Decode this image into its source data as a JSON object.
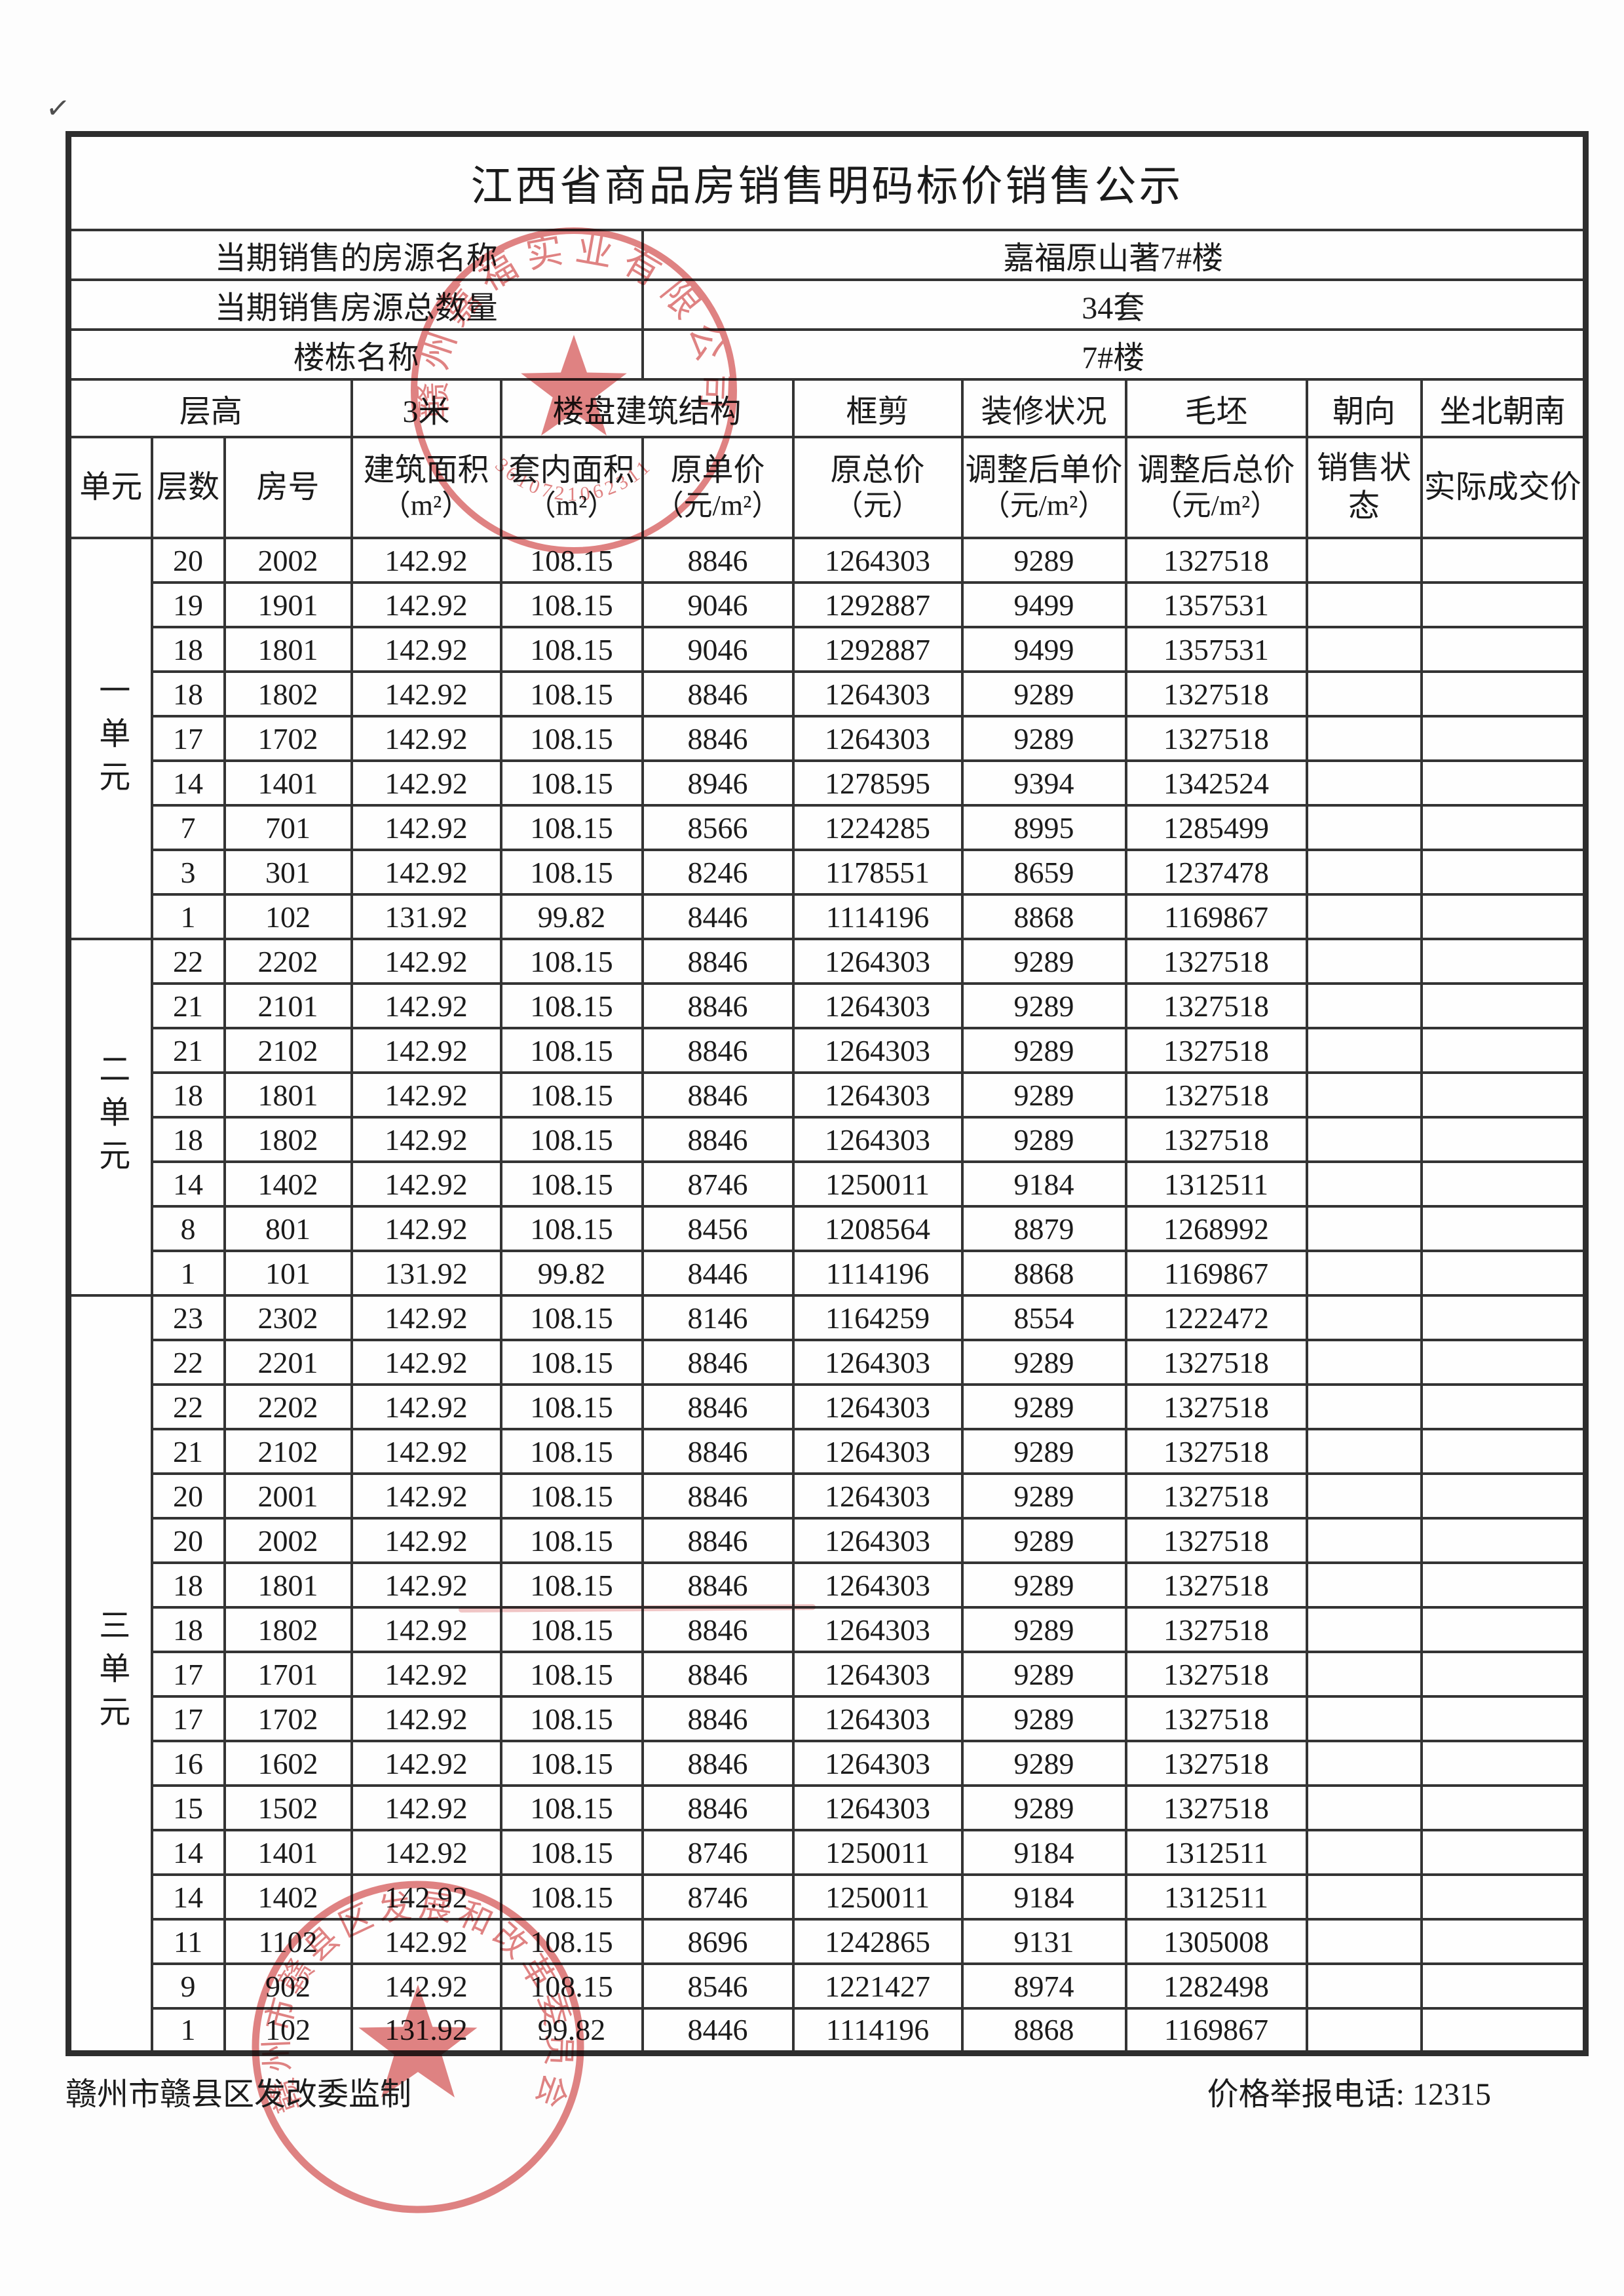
{
  "page": {
    "checkmark": "✓"
  },
  "title": "江西省商品房销售明码标价销售公示",
  "info_rows": [
    {
      "label": "当期销售的房源名称",
      "value": "嘉福原山著7#楼"
    },
    {
      "label": "当期销售房源总数量",
      "value": "34套"
    },
    {
      "label": "楼栋名称",
      "value": "7#楼"
    }
  ],
  "spec_row": {
    "cells": [
      "层高",
      "3米",
      "楼盘建筑结构",
      "框剪",
      "装修状况",
      "毛坯",
      "朝向",
      "坐北朝南"
    ]
  },
  "columns": [
    {
      "label": "单元",
      "unit": ""
    },
    {
      "label": "层数",
      "unit": ""
    },
    {
      "label": "房号",
      "unit": ""
    },
    {
      "label": "建筑面积",
      "unit": "（m²）"
    },
    {
      "label": "套内面积",
      "unit": "（m²）"
    },
    {
      "label": "原单价",
      "unit": "（元/m²）"
    },
    {
      "label": "原总价",
      "unit": "（元）"
    },
    {
      "label": "调整后单价",
      "unit": "（元/m²）"
    },
    {
      "label": "调整后总价",
      "unit": "（元/m²）"
    },
    {
      "label": "销售状态",
      "unit": ""
    },
    {
      "label": "实际成交价",
      "unit": ""
    }
  ],
  "units": [
    {
      "name": "一单元",
      "rows": [
        [
          "20",
          "2002",
          "142.92",
          "108.15",
          "8846",
          "1264303",
          "9289",
          "1327518",
          "",
          ""
        ],
        [
          "19",
          "1901",
          "142.92",
          "108.15",
          "9046",
          "1292887",
          "9499",
          "1357531",
          "",
          ""
        ],
        [
          "18",
          "1801",
          "142.92",
          "108.15",
          "9046",
          "1292887",
          "9499",
          "1357531",
          "",
          ""
        ],
        [
          "18",
          "1802",
          "142.92",
          "108.15",
          "8846",
          "1264303",
          "9289",
          "1327518",
          "",
          ""
        ],
        [
          "17",
          "1702",
          "142.92",
          "108.15",
          "8846",
          "1264303",
          "9289",
          "1327518",
          "",
          ""
        ],
        [
          "14",
          "1401",
          "142.92",
          "108.15",
          "8946",
          "1278595",
          "9394",
          "1342524",
          "",
          ""
        ],
        [
          "7",
          "701",
          "142.92",
          "108.15",
          "8566",
          "1224285",
          "8995",
          "1285499",
          "",
          ""
        ],
        [
          "3",
          "301",
          "142.92",
          "108.15",
          "8246",
          "1178551",
          "8659",
          "1237478",
          "",
          ""
        ],
        [
          "1",
          "102",
          "131.92",
          "99.82",
          "8446",
          "1114196",
          "8868",
          "1169867",
          "",
          ""
        ]
      ]
    },
    {
      "name": "二单元",
      "rows": [
        [
          "22",
          "2202",
          "142.92",
          "108.15",
          "8846",
          "1264303",
          "9289",
          "1327518",
          "",
          ""
        ],
        [
          "21",
          "2101",
          "142.92",
          "108.15",
          "8846",
          "1264303",
          "9289",
          "1327518",
          "",
          ""
        ],
        [
          "21",
          "2102",
          "142.92",
          "108.15",
          "8846",
          "1264303",
          "9289",
          "1327518",
          "",
          ""
        ],
        [
          "18",
          "1801",
          "142.92",
          "108.15",
          "8846",
          "1264303",
          "9289",
          "1327518",
          "",
          ""
        ],
        [
          "18",
          "1802",
          "142.92",
          "108.15",
          "8846",
          "1264303",
          "9289",
          "1327518",
          "",
          ""
        ],
        [
          "14",
          "1402",
          "142.92",
          "108.15",
          "8746",
          "1250011",
          "9184",
          "1312511",
          "",
          ""
        ],
        [
          "8",
          "801",
          "142.92",
          "108.15",
          "8456",
          "1208564",
          "8879",
          "1268992",
          "",
          ""
        ],
        [
          "1",
          "101",
          "131.92",
          "99.82",
          "8446",
          "1114196",
          "8868",
          "1169867",
          "",
          ""
        ]
      ]
    },
    {
      "name": "三单元",
      "rows": [
        [
          "23",
          "2302",
          "142.92",
          "108.15",
          "8146",
          "1164259",
          "8554",
          "1222472",
          "",
          ""
        ],
        [
          "22",
          "2201",
          "142.92",
          "108.15",
          "8846",
          "1264303",
          "9289",
          "1327518",
          "",
          ""
        ],
        [
          "22",
          "2202",
          "142.92",
          "108.15",
          "8846",
          "1264303",
          "9289",
          "1327518",
          "",
          ""
        ],
        [
          "21",
          "2102",
          "142.92",
          "108.15",
          "8846",
          "1264303",
          "9289",
          "1327518",
          "",
          ""
        ],
        [
          "20",
          "2001",
          "142.92",
          "108.15",
          "8846",
          "1264303",
          "9289",
          "1327518",
          "",
          ""
        ],
        [
          "20",
          "2002",
          "142.92",
          "108.15",
          "8846",
          "1264303",
          "9289",
          "1327518",
          "",
          ""
        ],
        [
          "18",
          "1801",
          "142.92",
          "108.15",
          "8846",
          "1264303",
          "9289",
          "1327518",
          "",
          ""
        ],
        [
          "18",
          "1802",
          "142.92",
          "108.15",
          "8846",
          "1264303",
          "9289",
          "1327518",
          "",
          ""
        ],
        [
          "17",
          "1701",
          "142.92",
          "108.15",
          "8846",
          "1264303",
          "9289",
          "1327518",
          "",
          ""
        ],
        [
          "17",
          "1702",
          "142.92",
          "108.15",
          "8846",
          "1264303",
          "9289",
          "1327518",
          "",
          ""
        ],
        [
          "16",
          "1602",
          "142.92",
          "108.15",
          "8846",
          "1264303",
          "9289",
          "1327518",
          "",
          ""
        ],
        [
          "15",
          "1502",
          "142.92",
          "108.15",
          "8846",
          "1264303",
          "9289",
          "1327518",
          "",
          ""
        ],
        [
          "14",
          "1401",
          "142.92",
          "108.15",
          "8746",
          "1250011",
          "9184",
          "1312511",
          "",
          ""
        ],
        [
          "14",
          "1402",
          "142.92",
          "108.15",
          "8746",
          "1250011",
          "9184",
          "1312511",
          "",
          ""
        ],
        [
          "11",
          "1102",
          "142.92",
          "108.15",
          "8696",
          "1242865",
          "9131",
          "1305008",
          "",
          ""
        ],
        [
          "9",
          "902",
          "142.92",
          "108.15",
          "8546",
          "1221427",
          "8974",
          "1282498",
          "",
          ""
        ],
        [
          "1",
          "102",
          "131.92",
          "99.82",
          "8446",
          "1114196",
          "8868",
          "1169867",
          "",
          ""
        ]
      ]
    }
  ],
  "footer": {
    "left": "赣州市赣县区发改委监制",
    "right": "价格举报电话: 12315"
  },
  "stamps": {
    "top": {
      "ring_text": "赣州嘉福实业有限公司",
      "serial": "3610721062311"
    },
    "bottom": {
      "ring_text": "赣州市赣县区发展和改革委员会"
    }
  },
  "colors": {
    "stamp_red": "#d96868",
    "table_line": "#343434",
    "text": "#1b1b1b"
  }
}
